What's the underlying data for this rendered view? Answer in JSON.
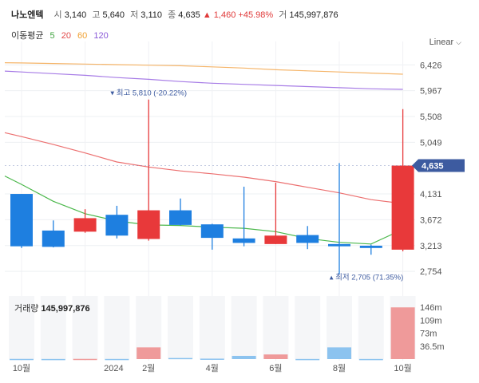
{
  "header": {
    "name": "나노엔텍",
    "open_label": "시",
    "open": "3,140",
    "high_label": "고",
    "high": "5,640",
    "low_label": "저",
    "low": "3,110",
    "close_label": "종",
    "close": "4,635",
    "change": "▲ 1,460",
    "change_pct": "+45.98%",
    "volume_label": "거",
    "volume": "145,997,876"
  },
  "ma_legend": {
    "label": "이동평균",
    "items": [
      {
        "text": "5",
        "color": "#3fa33f"
      },
      {
        "text": "20",
        "color": "#e24a4a"
      },
      {
        "text": "60",
        "color": "#f0a030"
      },
      {
        "text": "120",
        "color": "#8a5ad8"
      }
    ]
  },
  "scale_mode": "Linear",
  "colors": {
    "up": "#e8393a",
    "down": "#1e7fe0",
    "badge": "#3d5ba0"
  },
  "chart_data": {
    "type": "candlestick",
    "interval": "monthly",
    "price_axis": {
      "min": 2500,
      "max": 6700,
      "ticks": [
        6426,
        5967,
        5508,
        5049,
        4131,
        3672,
        3213,
        2754
      ],
      "tick_labels": [
        "6,426",
        "5,967",
        "5,508",
        "5,049",
        "4,131",
        "3,672",
        "3,213",
        "2,754"
      ]
    },
    "current_price_label": "4,635",
    "current_price": 4635,
    "x_labels": [
      {
        "i": 0,
        "text": "10월"
      },
      {
        "i": 2.9,
        "text": "2024"
      },
      {
        "i": 4,
        "text": "2월"
      },
      {
        "i": 6,
        "text": "4월"
      },
      {
        "i": 8,
        "text": "6월"
      },
      {
        "i": 10,
        "text": "8월"
      },
      {
        "i": 12,
        "text": "10월"
      }
    ],
    "candles": [
      {
        "o": 4131,
        "h": 4131,
        "l": 3170,
        "c": 3200
      },
      {
        "o": 3480,
        "h": 3660,
        "l": 3180,
        "c": 3190
      },
      {
        "o": 3460,
        "h": 3860,
        "l": 3440,
        "c": 3700
      },
      {
        "o": 3760,
        "h": 3920,
        "l": 3340,
        "c": 3390
      },
      {
        "o": 3330,
        "h": 5810,
        "l": 3300,
        "c": 3840
      },
      {
        "o": 3840,
        "h": 4050,
        "l": 3570,
        "c": 3580
      },
      {
        "o": 3590,
        "h": 3600,
        "l": 3140,
        "c": 3350
      },
      {
        "o": 3340,
        "h": 4260,
        "l": 3200,
        "c": 3260
      },
      {
        "o": 3240,
        "h": 4330,
        "l": 3240,
        "c": 3390
      },
      {
        "o": 3400,
        "h": 3560,
        "l": 3150,
        "c": 3260
      },
      {
        "o": 3240,
        "h": 4680,
        "l": 2705,
        "c": 3200
      },
      {
        "o": 3210,
        "h": 3230,
        "l": 3050,
        "c": 3170
      },
      {
        "o": 3140,
        "h": 5640,
        "l": 3110,
        "c": 4635
      }
    ],
    "moving_averages": {
      "ma5": [
        4300,
        4000,
        3780,
        3650,
        3580,
        3570,
        3540,
        3520,
        3460,
        3340,
        3270,
        3240,
        3500
      ],
      "ma20": [
        5150,
        5010,
        4860,
        4700,
        4610,
        4540,
        4490,
        4430,
        4350,
        4250,
        4150,
        4030,
        3960
      ],
      "ma60": [
        6460,
        6450,
        6440,
        6430,
        6420,
        6410,
        6390,
        6370,
        6340,
        6320,
        6300,
        6280,
        6260
      ],
      "ma120": [
        6300,
        6270,
        6240,
        6200,
        6170,
        6130,
        6100,
        6080,
        6060,
        6040,
        6020,
        6000,
        5990
      ]
    },
    "annotations": {
      "high": {
        "label": "▾ 최고 5,810 (-20.22%)",
        "price": 5810,
        "index": 4
      },
      "low": {
        "label": "▴ 최저 2,705 (71.35%)",
        "price": 2705,
        "index": 10
      }
    },
    "volume": {
      "title": "거래량",
      "total_label": "145,997,876",
      "max": 160000000,
      "ticks": [
        146000000,
        109000000,
        73000000,
        36500000
      ],
      "tick_labels": [
        "146m",
        "109m",
        "73m",
        "36.5m"
      ],
      "values": [
        500000,
        300000,
        600000,
        400000,
        33000000,
        3000000,
        1200000,
        9000000,
        13000000,
        300000,
        33000000,
        300000,
        146000000
      ]
    }
  }
}
